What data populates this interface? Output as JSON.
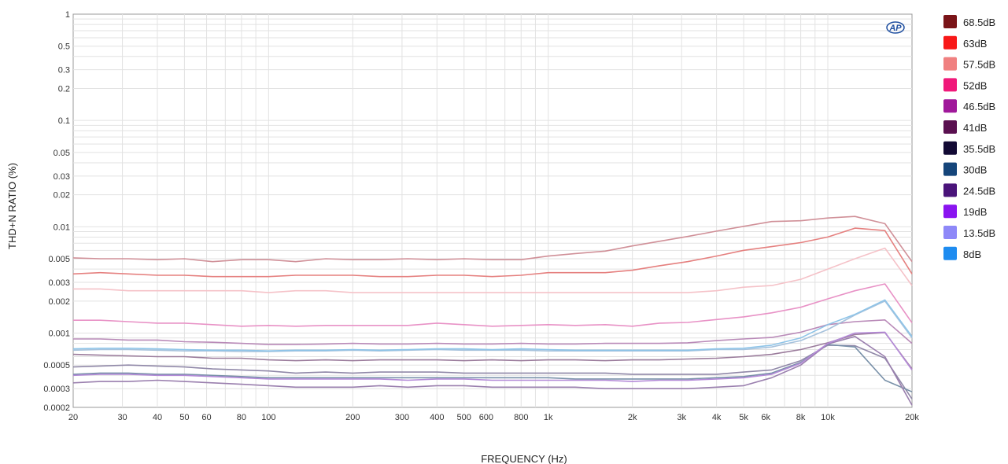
{
  "chart_data": {
    "type": "line",
    "xlabel": "FREQUENCY (Hz)",
    "ylabel": "THD+N RATIO (%)",
    "x_scale": "log",
    "y_scale": "log",
    "xlim": [
      20,
      20000
    ],
    "ylim": [
      0.0002,
      1
    ],
    "grid": true,
    "legend_position": "right",
    "x_ticks": [
      {
        "v": 20,
        "label": "20"
      },
      {
        "v": 30,
        "label": "30"
      },
      {
        "v": 40,
        "label": "40"
      },
      {
        "v": 50,
        "label": "50"
      },
      {
        "v": 60,
        "label": "60"
      },
      {
        "v": 80,
        "label": "80"
      },
      {
        "v": 100,
        "label": "100"
      },
      {
        "v": 200,
        "label": "200"
      },
      {
        "v": 300,
        "label": "300"
      },
      {
        "v": 400,
        "label": "400"
      },
      {
        "v": 500,
        "label": "500"
      },
      {
        "v": 600,
        "label": "600"
      },
      {
        "v": 800,
        "label": "800"
      },
      {
        "v": 1000,
        "label": "1k"
      },
      {
        "v": 2000,
        "label": "2k"
      },
      {
        "v": 3000,
        "label": "3k"
      },
      {
        "v": 4000,
        "label": "4k"
      },
      {
        "v": 5000,
        "label": "5k"
      },
      {
        "v": 6000,
        "label": "6k"
      },
      {
        "v": 8000,
        "label": "8k"
      },
      {
        "v": 10000,
        "label": "10k"
      },
      {
        "v": 20000,
        "label": "20k"
      }
    ],
    "y_ticks": [
      {
        "v": 1,
        "label": "1"
      },
      {
        "v": 0.5,
        "label": "0.5"
      },
      {
        "v": 0.3,
        "label": "0.3"
      },
      {
        "v": 0.2,
        "label": "0.2"
      },
      {
        "v": 0.1,
        "label": "0.1"
      },
      {
        "v": 0.05,
        "label": "0.05"
      },
      {
        "v": 0.03,
        "label": "0.03"
      },
      {
        "v": 0.02,
        "label": "0.02"
      },
      {
        "v": 0.01,
        "label": "0.01"
      },
      {
        "v": 0.005,
        "label": "0.005"
      },
      {
        "v": 0.003,
        "label": "0.003"
      },
      {
        "v": 0.002,
        "label": "0.002"
      },
      {
        "v": 0.001,
        "label": "0.001"
      },
      {
        "v": 0.0005,
        "label": "0.0005"
      },
      {
        "v": 0.0003,
        "label": "0.0003"
      },
      {
        "v": 0.0002,
        "label": "0.0002"
      }
    ],
    "x": [
      20,
      25,
      31.5,
      40,
      50,
      63,
      80,
      100,
      125,
      160,
      200,
      250,
      315,
      400,
      500,
      630,
      800,
      1000,
      1250,
      1600,
      2000,
      2500,
      3150,
      4000,
      5000,
      6300,
      8000,
      10000,
      12500,
      16000,
      20000
    ],
    "series": [
      {
        "name": "68.5dB",
        "color": "#d09098",
        "values": [
          0.0051,
          0.005,
          0.005,
          0.0049,
          0.005,
          0.0047,
          0.0049,
          0.0049,
          0.0047,
          0.005,
          0.0049,
          0.0049,
          0.005,
          0.0049,
          0.005,
          0.0049,
          0.0049,
          0.0053,
          0.0056,
          0.0059,
          0.0066,
          0.0073,
          0.0081,
          0.0091,
          0.0101,
          0.0112,
          0.0114,
          0.0121,
          0.0125,
          0.0107,
          0.0047
        ]
      },
      {
        "name": "63dB",
        "color": "#e5807f",
        "values": [
          0.0036,
          0.0037,
          0.0036,
          0.0035,
          0.0035,
          0.0034,
          0.0034,
          0.0034,
          0.0035,
          0.0035,
          0.0035,
          0.0034,
          0.0034,
          0.0035,
          0.0035,
          0.0034,
          0.0035,
          0.0037,
          0.0037,
          0.0037,
          0.0039,
          0.0043,
          0.0047,
          0.0053,
          0.006,
          0.0065,
          0.0071,
          0.008,
          0.0097,
          0.0092,
          0.0036
        ]
      },
      {
        "name": "57.5dB",
        "color": "#f5c2c8",
        "values": [
          0.0026,
          0.0026,
          0.0025,
          0.0025,
          0.0025,
          0.0025,
          0.0025,
          0.0024,
          0.0025,
          0.0025,
          0.0024,
          0.0024,
          0.0024,
          0.0024,
          0.0024,
          0.0024,
          0.0024,
          0.0024,
          0.0024,
          0.0024,
          0.0024,
          0.0024,
          0.0024,
          0.0025,
          0.0027,
          0.0028,
          0.0032,
          0.004,
          0.005,
          0.0063,
          0.0028
        ]
      },
      {
        "name": "52dB",
        "color": "#e892c6",
        "values": [
          0.00132,
          0.00132,
          0.00128,
          0.00124,
          0.00124,
          0.0012,
          0.00116,
          0.00118,
          0.00116,
          0.00118,
          0.00118,
          0.00118,
          0.00118,
          0.00124,
          0.0012,
          0.00116,
          0.00118,
          0.0012,
          0.00118,
          0.0012,
          0.00116,
          0.00124,
          0.00126,
          0.00134,
          0.00142,
          0.00155,
          0.00175,
          0.0021,
          0.0025,
          0.0029,
          0.00125
        ]
      },
      {
        "name": "46.5dB",
        "color": "#b98ab8",
        "values": [
          0.00088,
          0.00088,
          0.00086,
          0.00086,
          0.00083,
          0.00082,
          0.0008,
          0.00078,
          0.00078,
          0.00079,
          0.0008,
          0.00079,
          0.00079,
          0.0008,
          0.00079,
          0.00079,
          0.0008,
          0.00079,
          0.00079,
          0.0008,
          0.0008,
          0.0008,
          0.00081,
          0.00085,
          0.00088,
          0.00091,
          0.00102,
          0.0012,
          0.00128,
          0.00133,
          0.0008
        ]
      },
      {
        "name": "41dB",
        "color": "#9b7c9c",
        "values": [
          0.00063,
          0.00062,
          0.00061,
          0.0006,
          0.0006,
          0.00058,
          0.00058,
          0.00056,
          0.00055,
          0.00056,
          0.00055,
          0.00056,
          0.00056,
          0.00056,
          0.00055,
          0.00056,
          0.00055,
          0.00056,
          0.00056,
          0.00055,
          0.00056,
          0.00056,
          0.00057,
          0.00058,
          0.0006,
          0.00063,
          0.0007,
          0.00081,
          0.00097,
          0.00101,
          0.00046
        ]
      },
      {
        "name": "35.5dB",
        "color": "#9088a8",
        "values": [
          0.00048,
          0.00049,
          0.0005,
          0.00049,
          0.00048,
          0.00046,
          0.00045,
          0.00044,
          0.00042,
          0.00043,
          0.00042,
          0.00043,
          0.00043,
          0.00043,
          0.00042,
          0.00042,
          0.00042,
          0.00042,
          0.00042,
          0.00042,
          0.00041,
          0.00041,
          0.00041,
          0.00041,
          0.00043,
          0.00045,
          0.00055,
          0.00077,
          0.00076,
          0.00058,
          0.00024
        ]
      },
      {
        "name": "30dB",
        "color": "#7890a8",
        "values": [
          0.00041,
          0.00042,
          0.00042,
          0.00041,
          0.00041,
          0.0004,
          0.00039,
          0.00038,
          0.00038,
          0.00038,
          0.00038,
          0.00038,
          0.00038,
          0.00038,
          0.00038,
          0.00038,
          0.00038,
          0.00038,
          0.00037,
          0.00037,
          0.00037,
          0.00037,
          0.00037,
          0.00038,
          0.00039,
          0.00042,
          0.00053,
          0.00078,
          0.00074,
          0.00036,
          0.00028
        ]
      },
      {
        "name": "24.5dB",
        "color": "#9a7fae",
        "values": [
          0.00034,
          0.00035,
          0.00035,
          0.00036,
          0.00035,
          0.00034,
          0.00033,
          0.00032,
          0.00031,
          0.00031,
          0.00031,
          0.00032,
          0.00031,
          0.00032,
          0.00032,
          0.00031,
          0.00031,
          0.00031,
          0.00031,
          0.0003,
          0.0003,
          0.0003,
          0.0003,
          0.00031,
          0.00032,
          0.00038,
          0.0005,
          0.00079,
          0.00093,
          0.0006,
          0.00021
        ]
      },
      {
        "name": "19dB",
        "color": "#b48ad8",
        "values": [
          0.0004,
          0.00041,
          0.00041,
          0.0004,
          0.0004,
          0.00039,
          0.00038,
          0.00037,
          0.00037,
          0.00037,
          0.00037,
          0.00037,
          0.00036,
          0.00037,
          0.00037,
          0.00036,
          0.00036,
          0.00036,
          0.00036,
          0.00036,
          0.00035,
          0.00036,
          0.00036,
          0.00037,
          0.00038,
          0.00041,
          0.00052,
          0.0008,
          0.001,
          0.00102,
          0.00045
        ]
      },
      {
        "name": "13.5dB",
        "color": "#a6c2dc",
        "values": [
          0.00069,
          0.0007,
          0.0007,
          0.00069,
          0.00068,
          0.00068,
          0.00067,
          0.00067,
          0.00068,
          0.00068,
          0.00069,
          0.00068,
          0.00069,
          0.0007,
          0.00069,
          0.00069,
          0.00069,
          0.00068,
          0.00068,
          0.00068,
          0.00068,
          0.00068,
          0.00068,
          0.0007,
          0.0007,
          0.00074,
          0.00085,
          0.00108,
          0.00148,
          0.002,
          0.0009
        ]
      },
      {
        "name": "8dB",
        "color": "#8ec4e8",
        "values": [
          0.00071,
          0.00072,
          0.00072,
          0.00071,
          0.0007,
          0.00069,
          0.00069,
          0.00068,
          0.00069,
          0.00069,
          0.0007,
          0.00069,
          0.0007,
          0.00071,
          0.00071,
          0.0007,
          0.00071,
          0.0007,
          0.00069,
          0.00069,
          0.00069,
          0.00069,
          0.00069,
          0.00071,
          0.00072,
          0.00077,
          0.0009,
          0.0012,
          0.0015,
          0.00205,
          0.00093
        ]
      }
    ],
    "legend_swatches": [
      "#7a1418",
      "#f81818",
      "#f08080",
      "#f0197a",
      "#a0189a",
      "#5a1050",
      "#120a34",
      "#15457a",
      "#4a147a",
      "#8a14f0",
      "#8e88f8",
      "#1e8cf0"
    ]
  },
  "logo": {
    "text": "AP"
  }
}
